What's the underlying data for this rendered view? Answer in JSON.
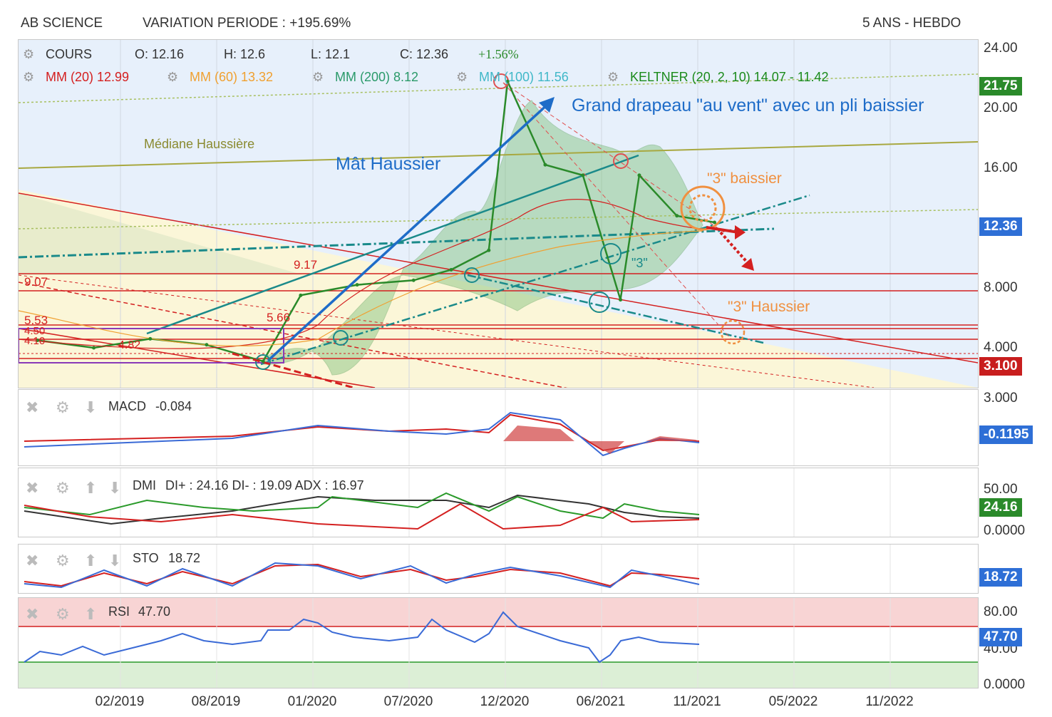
{
  "header": {
    "name": "AB SCIENCE",
    "variation": "VARIATION PERIODE : +195.69%",
    "period": "5 ANS - HEBDO"
  },
  "legend": {
    "cours": "COURS",
    "open": "O: 12.16",
    "high": "H: 12.6",
    "low": "L: 12.1",
    "close": "C: 12.36",
    "change": "+1.56%",
    "mm20": "MM (20)  12.99",
    "mm60": "MM (60)  13.32",
    "mm200": "MM (200)  8.12",
    "mm100": "MM (100)  11.56",
    "keltner": "KELTNER (20, 2, 10)  14.07 - 11.42"
  },
  "annotations": {
    "flag": "Grand drapeau \"au vent\" avec un pli baissier",
    "mast": "Mât Haussier",
    "median": "Médiane Haussière",
    "three_bear": "\"3\" baissier",
    "three_bull": "\"3\" Haussier",
    "three": "\"3\"",
    "p917": "9.17",
    "p566": "5.66",
    "p553": "5.53",
    "p907": "9.07",
    "p482": "4.82",
    "p450": "4.50",
    "p410": "4.10"
  },
  "price_axis": {
    "t24": "24.00",
    "t20": "20.00",
    "t16": "16.00",
    "t8": "8.000",
    "t4": "4.000"
  },
  "price_tags": {
    "high": "21.75",
    "last": "12.36",
    "low": "3.100"
  },
  "colors": {
    "tag_high": "#2a8a2a",
    "tag_last": "#2e6fd6",
    "tag_low": "#c81e1e",
    "mm20": "#d42020",
    "mm60": "#f0a030",
    "mm200": "#2a9a6a",
    "mm100": "#40b8c8",
    "keltner": "#2a8a2a"
  },
  "x_axis": [
    "02/2019",
    "08/2019",
    "01/2020",
    "07/2020",
    "12/2020",
    "06/2021",
    "11/2021",
    "05/2022",
    "11/2022"
  ],
  "macd": {
    "label": "MACD",
    "value": "-0.084",
    "axis_top": "3.000",
    "tag": "-0.1195"
  },
  "dmi": {
    "label": "DMI",
    "value": "DI+ : 24.16 DI- : 19.09 ADX : 16.97",
    "axis_top": "50.00",
    "axis_bottom": "0.0000",
    "tag": "24.16"
  },
  "sto": {
    "label": "STO",
    "value": "18.72",
    "tag": "18.72"
  },
  "rsi": {
    "label": "RSI",
    "value": "47.70",
    "axis_top": "80.00",
    "axis_mid": "40.00",
    "axis_bottom": "0.0000",
    "tag": "47.70"
  },
  "chart_data": {
    "type": "line",
    "title": "AB SCIENCE",
    "x": [
      "2018-11",
      "2019-02",
      "2019-05",
      "2019-08",
      "2019-11",
      "2020-01",
      "2020-04",
      "2020-07",
      "2020-09",
      "2020-11",
      "2020-12",
      "2021-02",
      "2021-04",
      "2021-06",
      "2021-07",
      "2021-09",
      "2021-11"
    ],
    "series": [
      {
        "name": "COURS",
        "values": [
          4.5,
          4.0,
          4.6,
          4.2,
          3.1,
          7.5,
          8.2,
          8.5,
          9.2,
          10.5,
          21.75,
          16.2,
          15.5,
          7.2,
          15.5,
          12.8,
          12.36
        ]
      }
    ],
    "ylim": [
      2,
      25
    ],
    "xlim": [
      "2018-10",
      "2023-01"
    ]
  }
}
